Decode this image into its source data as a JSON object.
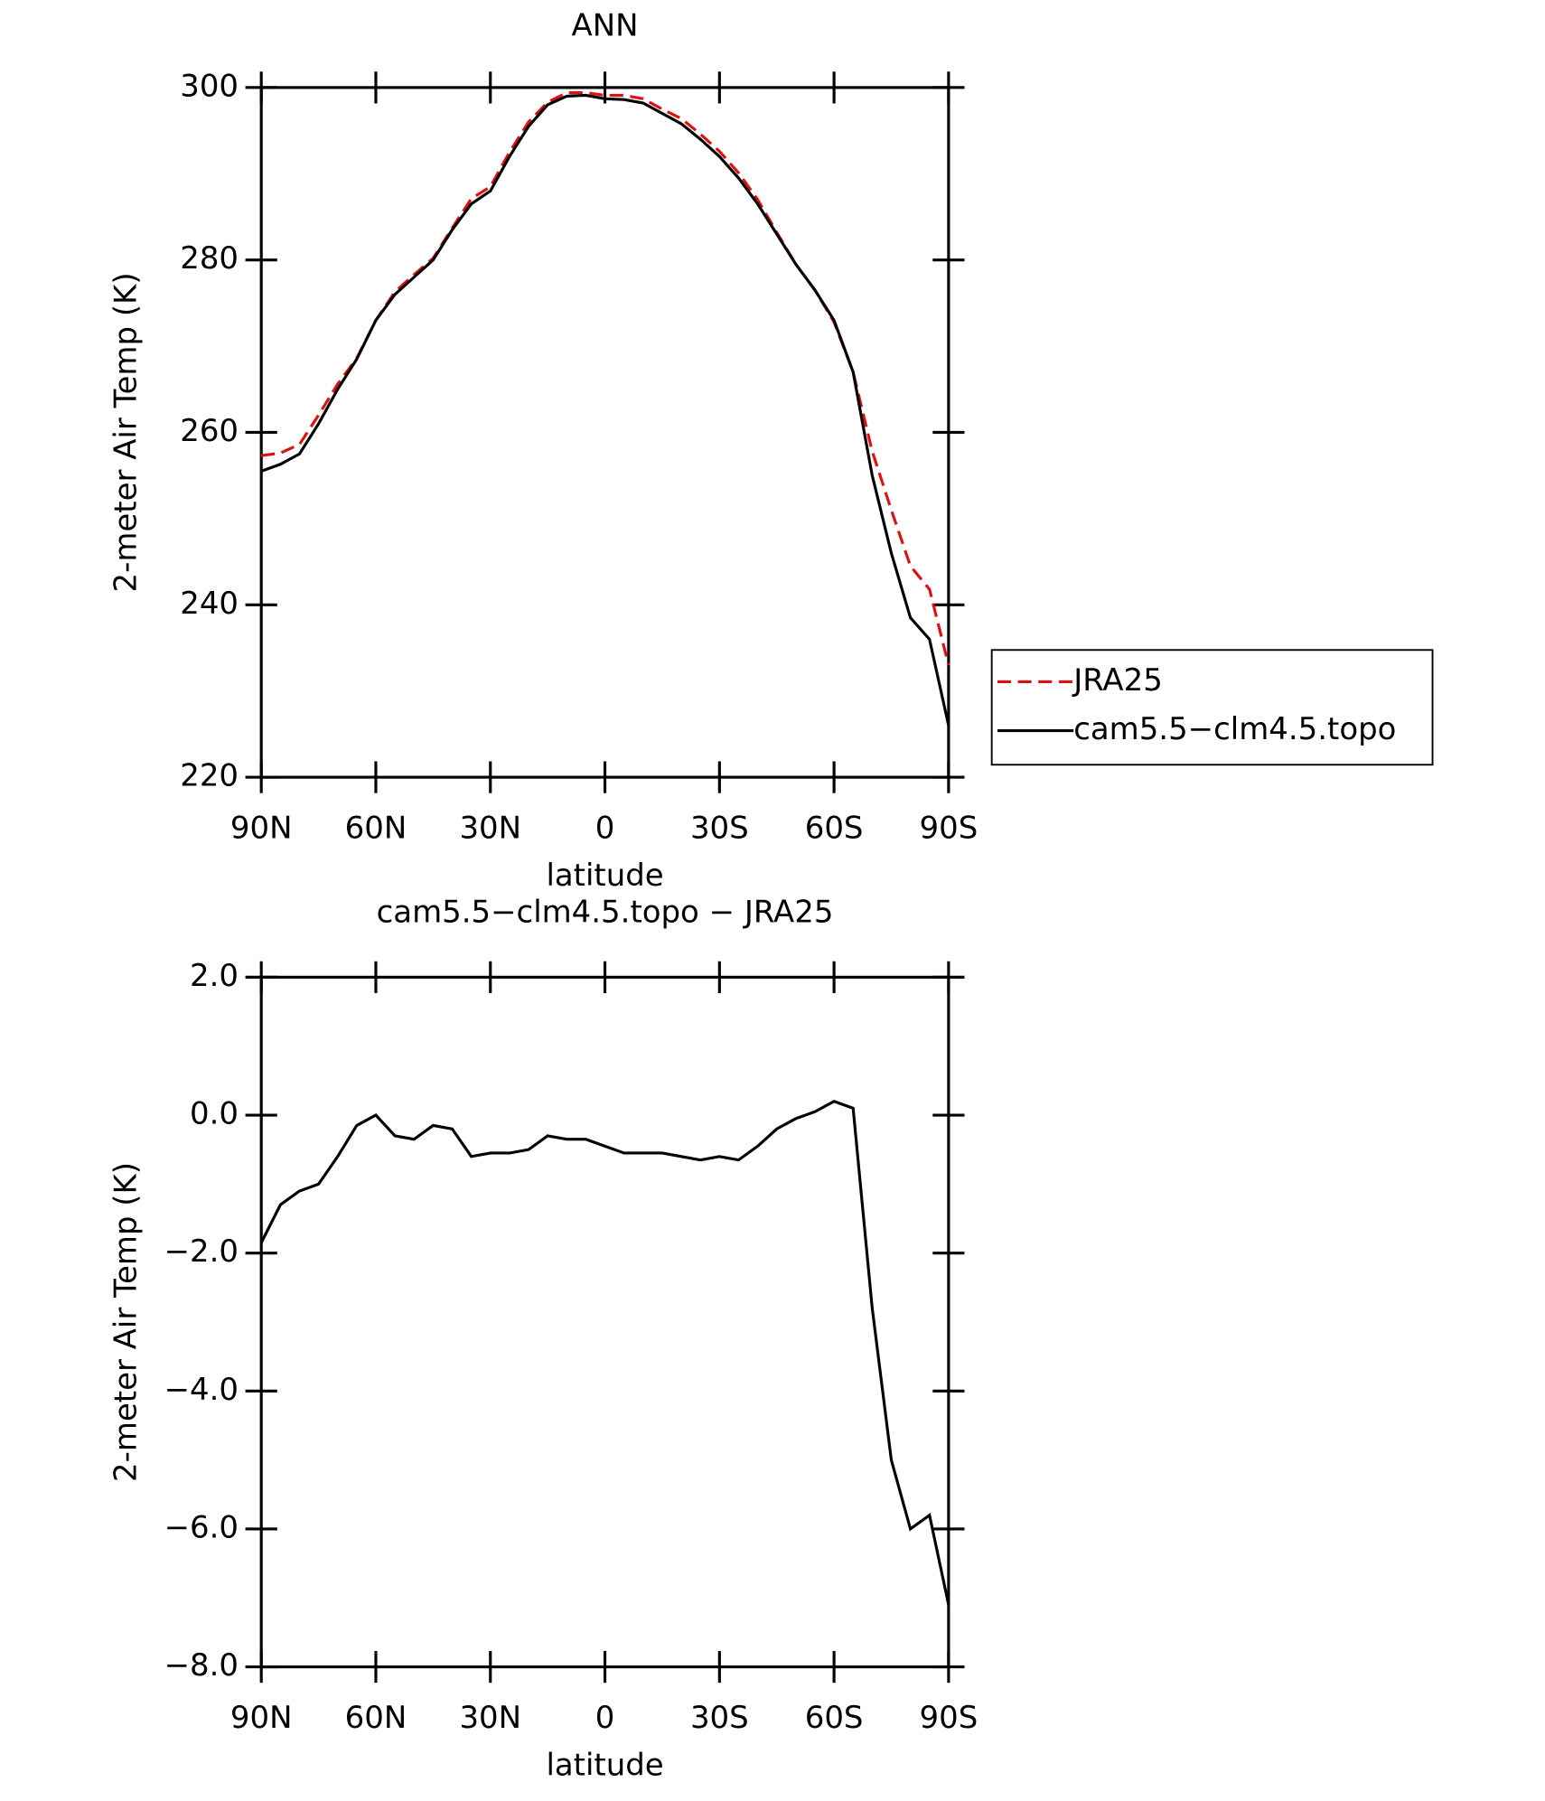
{
  "chart_data": [
    {
      "type": "line",
      "title": "ANN",
      "xlabel": "latitude",
      "ylabel": "2-meter Air Temp (K)",
      "x": [
        90,
        85,
        80,
        75,
        70,
        65,
        60,
        55,
        50,
        45,
        40,
        35,
        30,
        25,
        20,
        15,
        10,
        5,
        0,
        -5,
        -10,
        -15,
        -20,
        -25,
        -30,
        -35,
        -40,
        -45,
        -50,
        -55,
        -60,
        -65,
        -70,
        -75,
        -80,
        -85,
        -90
      ],
      "xlim": [
        90,
        -90
      ],
      "xticks": [
        {
          "value": 90,
          "label": "90N"
        },
        {
          "value": 60,
          "label": "60N"
        },
        {
          "value": 30,
          "label": "30N"
        },
        0,
        {
          "value": -30,
          "label": "30S"
        },
        {
          "value": -60,
          "label": "60S"
        },
        {
          "value": -90,
          "label": "90S"
        }
      ],
      "ylim": [
        220,
        300
      ],
      "yticks": [
        220,
        240,
        260,
        280,
        300
      ],
      "legend": "right",
      "series": [
        {
          "name": "JRA25",
          "color": "#e01010",
          "line_style": "dashed",
          "values": [
            257.3,
            257.6,
            258.6,
            262,
            265.6,
            268.6,
            273,
            276.3,
            278.3,
            280.2,
            283.7,
            287.1,
            288.5,
            292.5,
            296,
            298.3,
            299.4,
            299.4,
            299.1,
            299.1,
            298.7,
            297.5,
            296.4,
            294.6,
            292.6,
            290.1,
            287,
            283.2,
            279.5,
            276.5,
            272.8,
            267,
            257.8,
            251,
            244.5,
            241.8,
            233
          ]
        },
        {
          "name": "cam5.5−clm4.5.topo",
          "color": "#000000",
          "line_style": "solid",
          "values": [
            255.5,
            256.3,
            257.5,
            261,
            265,
            268.5,
            273,
            276,
            278,
            280,
            283.5,
            286.5,
            288,
            292,
            295.5,
            298,
            299,
            299.1,
            298.7,
            298.6,
            298.2,
            297,
            295.8,
            294,
            292,
            289.5,
            286.5,
            283,
            279.5,
            276.5,
            273,
            267,
            255,
            246,
            238.5,
            236,
            226
          ]
        }
      ]
    },
    {
      "type": "line",
      "title": "cam5.5−clm4.5.topo − JRA25",
      "xlabel": "latitude",
      "ylabel": "2-meter Air Temp (K)",
      "x": [
        90,
        85,
        80,
        75,
        70,
        65,
        60,
        55,
        50,
        45,
        40,
        35,
        30,
        25,
        20,
        15,
        10,
        5,
        0,
        -5,
        -10,
        -15,
        -20,
        -25,
        -30,
        -35,
        -40,
        -45,
        -50,
        -55,
        -60,
        -65,
        -70,
        -75,
        -80,
        -85,
        -90
      ],
      "xlim": [
        90,
        -90
      ],
      "xticks": [
        {
          "value": 90,
          "label": "90N"
        },
        {
          "value": 60,
          "label": "60N"
        },
        {
          "value": 30,
          "label": "30N"
        },
        0,
        {
          "value": -30,
          "label": "30S"
        },
        {
          "value": -60,
          "label": "60S"
        },
        {
          "value": -90,
          "label": "90S"
        }
      ],
      "ylim": [
        -8,
        2
      ],
      "yticks": [
        {
          "value": -8,
          "label": "−8.0"
        },
        {
          "value": -6,
          "label": "−6.0"
        },
        {
          "value": -4,
          "label": "−4.0"
        },
        {
          "value": -2,
          "label": "−2.0"
        },
        {
          "value": 0,
          "label": "0.0"
        },
        {
          "value": 2,
          "label": "2.0"
        }
      ],
      "series": [
        {
          "color": "#000000",
          "line_style": "solid",
          "values": [
            -1.85,
            -1.3,
            -1.1,
            -1.0,
            -0.6,
            -0.15,
            0,
            -0.3,
            -0.35,
            -0.15,
            -0.2,
            -0.6,
            -0.55,
            -0.55,
            -0.5,
            -0.3,
            -0.35,
            -0.35,
            -0.45,
            -0.55,
            -0.55,
            -0.55,
            -0.6,
            -0.65,
            -0.6,
            -0.65,
            -0.45,
            -0.2,
            -0.05,
            0.05,
            0.2,
            0.1,
            -2.8,
            -5.0,
            -6.0,
            -5.8,
            -7.1
          ]
        }
      ]
    }
  ]
}
